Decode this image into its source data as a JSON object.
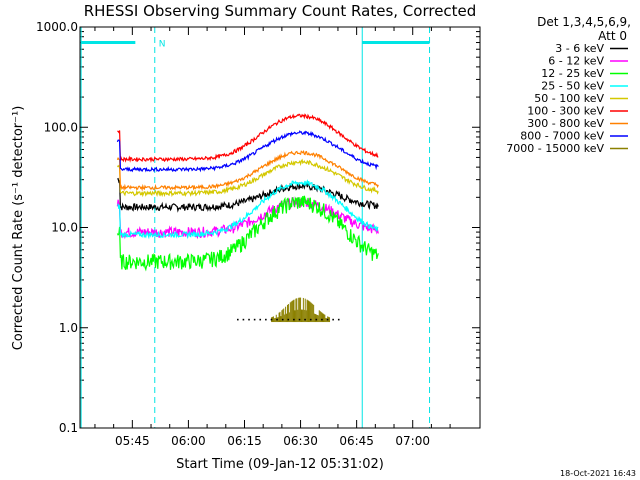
{
  "chart_data": {
    "type": "line",
    "title": "RHESSI Observing Summary Count Rates, Corrected",
    "xlabel": "Start Time (09-Jan-12 05:31:02)",
    "ylabel": "Corrected Count Rate (s⁻¹ detector⁻¹)",
    "yscale": "log",
    "ylim": [
      0.1,
      1000
    ],
    "xlim_minutes_after_0531": [
      0,
      107
    ],
    "x_ticks": [
      {
        "label": "05:45",
        "t": 14
      },
      {
        "label": "06:00",
        "t": 29
      },
      {
        "label": "06:15",
        "t": 44
      },
      {
        "label": "06:30",
        "t": 59
      },
      {
        "label": "06:45",
        "t": 74
      },
      {
        "label": "07:00",
        "t": 89
      }
    ],
    "y_ticks": [
      {
        "label": "1000.0",
        "v": 1000
      },
      {
        "label": "100.0",
        "v": 100
      },
      {
        "label": "10.0",
        "v": 10
      },
      {
        "label": "1.0",
        "v": 1
      },
      {
        "label": "0.1",
        "v": 0.1
      }
    ],
    "legend_header": [
      "Det 1,3,4,5,6,9,",
      "Att 0"
    ],
    "legend_position": "right",
    "series": [
      {
        "name": "3 - 6 keV",
        "color": "#000000",
        "base": 16,
        "peak": 26,
        "noise": 0.08
      },
      {
        "name": "6 - 12 keV",
        "color": "#ff00ff",
        "base": 9,
        "peak": 18,
        "noise": 0.12
      },
      {
        "name": "12 - 25 keV",
        "color": "#00ff00",
        "base": 4.6,
        "peak": 18,
        "noise": 0.18
      },
      {
        "name": "25 - 50 keV",
        "color": "#00ffff",
        "base": 8.5,
        "peak": 28,
        "noise": 0.06
      },
      {
        "name": "50 - 100 keV",
        "color": "#d4c800",
        "base": 22,
        "peak": 45,
        "noise": 0.05
      },
      {
        "name": "100 - 300 keV",
        "color": "#ff0000",
        "base": 48,
        "peak": 130,
        "noise": 0.04
      },
      {
        "name": "300 - 800 keV",
        "color": "#ff8000",
        "base": 25,
        "peak": 56,
        "noise": 0.04
      },
      {
        "name": "800 - 7000 keV",
        "color": "#0000ff",
        "base": 38,
        "peak": 88,
        "noise": 0.04
      },
      {
        "name": "7000 - 15000 keV",
        "color": "#8b8000",
        "base": 1.2,
        "peak": 2.0,
        "noise": 0.2
      }
    ],
    "markers": [
      {
        "label": "N",
        "t": 20
      }
    ],
    "timestamp": "18-Oct-2021 16:43"
  }
}
